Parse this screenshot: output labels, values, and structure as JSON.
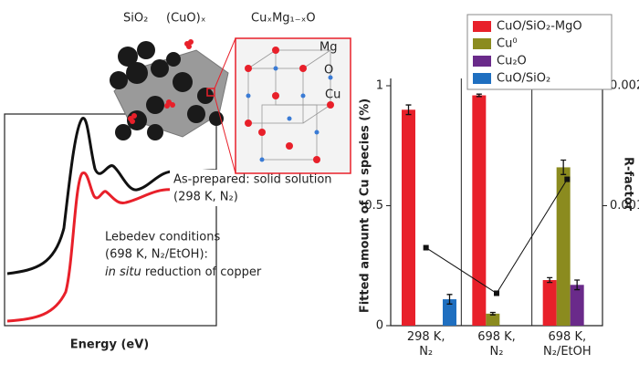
{
  "chart_data": {
    "type": "bar",
    "ylabel": "Fitted amount of Cu species (%)",
    "y2label": "R-factor",
    "categories": [
      "298 K, N₂",
      "698 K, N₂",
      "698 K, N₂/EtOH"
    ],
    "ylim": [
      0,
      1
    ],
    "yticks": [
      0,
      0.5,
      1
    ],
    "y2lim": [
      0,
      0.002
    ],
    "y2ticks": [
      0.001,
      0.002
    ],
    "legend": "upper right",
    "series": [
      {
        "name": "CuO/SiO₂-MgO",
        "color": "#e8202a",
        "values": [
          0.9,
          0.96,
          0.19
        ],
        "errors": [
          0.02,
          0.005,
          0.01
        ]
      },
      {
        "name": "Cu⁰",
        "color": "#8b8b1f",
        "values": [
          null,
          0.05,
          0.66
        ],
        "errors": [
          null,
          0.005,
          0.03
        ]
      },
      {
        "name": "Cu₂O",
        "color": "#6a2a8a",
        "values": [
          null,
          null,
          0.17
        ],
        "errors": [
          null,
          null,
          0.02
        ]
      },
      {
        "name": "CuO/SiO₂",
        "color": "#1f6fc0",
        "values": [
          0.11,
          null,
          null
        ],
        "errors": [
          0.02,
          null,
          null
        ]
      },
      {
        "type": "line",
        "axis": "y2",
        "color": "#111",
        "values": [
          0.00065,
          0.00027,
          0.00122
        ]
      }
    ]
  },
  "figure": {
    "support": "SiO₂",
    "cluster": "(CuO)ₓ",
    "lattice": "CuₓMg₁₋ₓO",
    "atoms": [
      "Mg",
      "O",
      "Cu"
    ],
    "xlabel": "Energy (eV)",
    "spectrum1": [
      "As-prepared: solid solution",
      "(298 K, N₂)"
    ],
    "spectrum2": [
      "Lebedev conditions",
      "(698 K, N₂/EtOH):"
    ],
    "spectrum2_italic": "in situ",
    "spectrum2_rest": " reduction of copper"
  }
}
